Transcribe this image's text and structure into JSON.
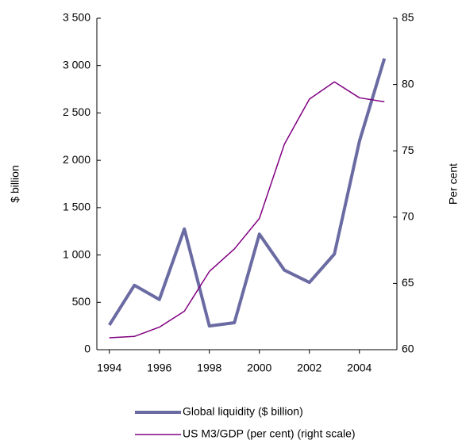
{
  "chart_data": {
    "type": "line",
    "x": [
      1994,
      1995,
      1996,
      1997,
      1998,
      1999,
      2000,
      2001,
      2002,
      2003,
      2004,
      2005
    ],
    "xlim": [
      1993.5,
      2005.5
    ],
    "xticks": [
      1994,
      1996,
      1998,
      2000,
      2002,
      2004
    ],
    "ylim": [
      0,
      3500
    ],
    "yticks": [
      0,
      500,
      {
        "value": 1000,
        "label": "1 000"
      },
      {
        "value": 1500,
        "label": "1 500"
      },
      {
        "value": 2000,
        "label": "2 000"
      },
      {
        "value": 2500,
        "label": "2 500"
      },
      {
        "value": 3000,
        "label": "3 000"
      },
      {
        "value": 3500,
        "label": "3 500"
      }
    ],
    "y2lim": [
      60,
      85
    ],
    "y2ticks": [
      60,
      65,
      70,
      75,
      80,
      85
    ],
    "ylabel": "$ billion",
    "y2label": "Per cent",
    "series": [
      {
        "name": "Global liquidity ($ billion)",
        "color": "#6b6ba3",
        "width": 4,
        "values": [
          260,
          680,
          530,
          1275,
          250,
          285,
          1220,
          840,
          710,
          1010,
          2200,
          3075
        ]
      },
      {
        "name": "US M3/GDP (per cent) (right scale)",
        "color": "#800080",
        "width": 1.5,
        "axis": "y2",
        "values": [
          60.9,
          61.0,
          61.7,
          62.9,
          65.9,
          67.6,
          69.9,
          75.5,
          78.9,
          80.2,
          79.0,
          78.7
        ]
      }
    ]
  }
}
